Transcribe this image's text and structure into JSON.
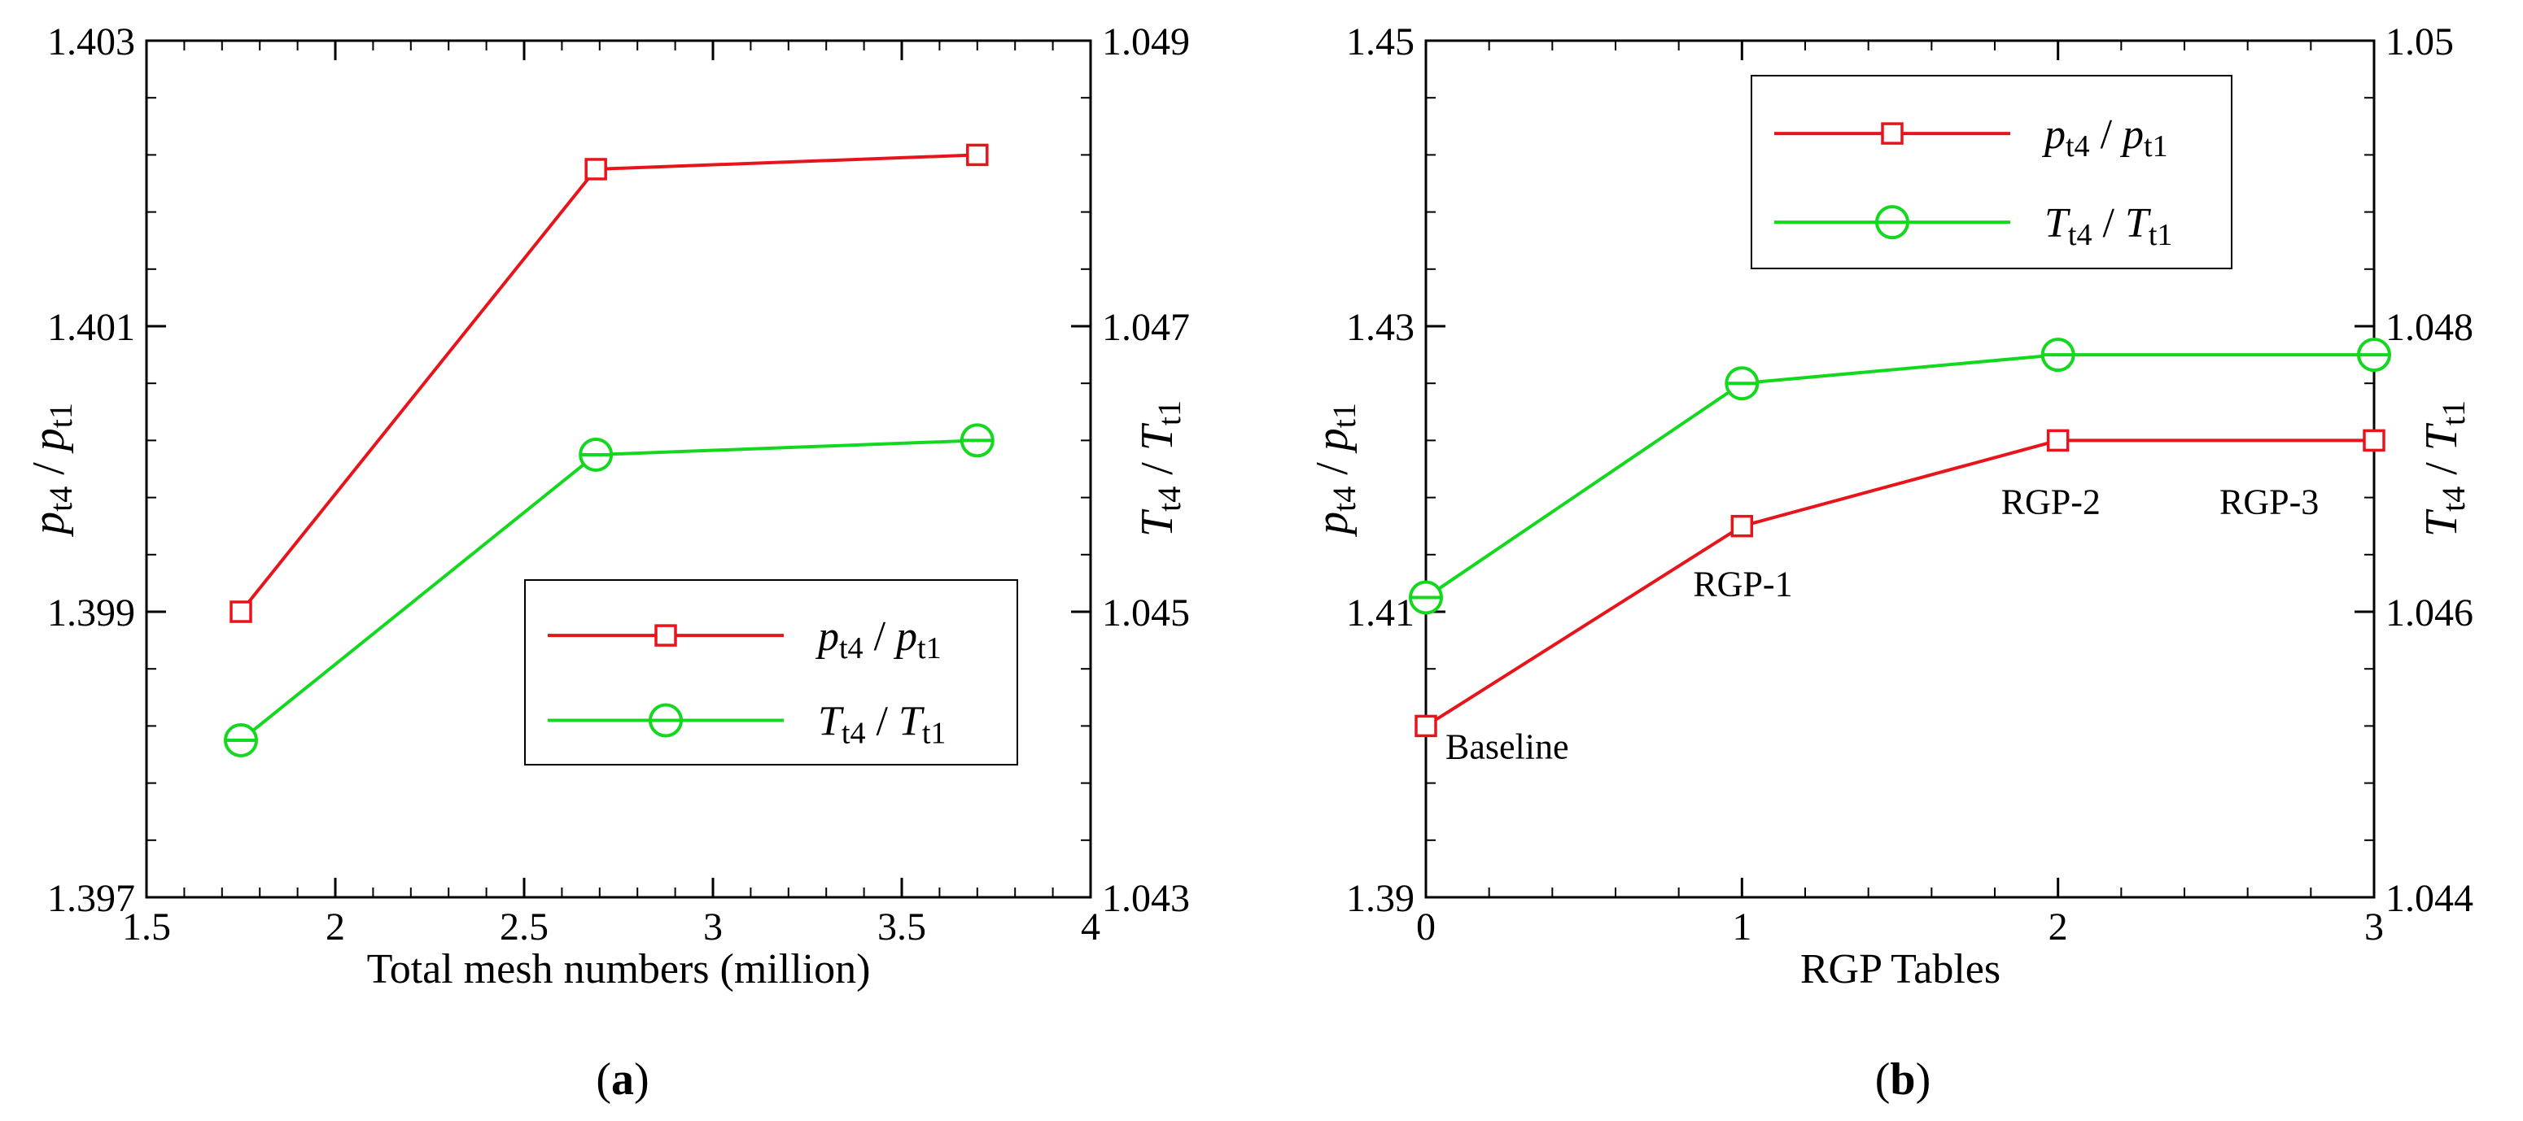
{
  "colors": {
    "pressure": "#e8141b",
    "temperature": "#12d81e",
    "axis": "#000000"
  },
  "chart_data": [
    {
      "panel": "a",
      "panel_label": "a",
      "type": "line",
      "xlabel": "Total mesh numbers (million)",
      "xlim": [
        1.5,
        4
      ],
      "x_ticks": [
        "1.5",
        "2",
        "2.5",
        "3",
        "3.5",
        "4"
      ],
      "ylim_left": [
        1.397,
        1.403
      ],
      "y_ticks_left": [
        "1.397",
        "1.399",
        "1.401",
        "1.403"
      ],
      "ylim_right": [
        1.043,
        1.049
      ],
      "y_ticks_right": [
        "1.043",
        "1.045",
        "1.047",
        "1.049"
      ],
      "ylabel_left": {
        "base": "p",
        "sub": "t4",
        "slash": " / ",
        "base2": "p",
        "sub2": "t1"
      },
      "ylabel_right": {
        "base": "T",
        "sub": "t4",
        "slash": " / ",
        "base2": "T",
        "sub2": "t1"
      },
      "legend_position": "lower-right",
      "series": [
        {
          "name": "pt4 / pt1",
          "axis": "left",
          "marker": "square",
          "color": "#e8141b",
          "x": [
            1.75,
            2.69,
            3.7
          ],
          "y": [
            1.399,
            1.4021,
            1.4022
          ]
        },
        {
          "name": "Tt4 / Tt1",
          "axis": "right",
          "marker": "circle",
          "color": "#12d81e",
          "x": [
            1.75,
            2.69,
            3.7
          ],
          "y": [
            1.0441,
            1.0461,
            1.0462
          ]
        }
      ],
      "annotations": []
    },
    {
      "panel": "b",
      "panel_label": "b",
      "type": "line",
      "xlabel": "RGP Tables",
      "xlim": [
        0,
        3
      ],
      "x_ticks": [
        "0",
        "1",
        "2",
        "3"
      ],
      "ylim_left": [
        1.39,
        1.45
      ],
      "y_ticks_left": [
        "1.39",
        "1.41",
        "1.43",
        "1.45"
      ],
      "ylim_right": [
        1.044,
        1.05
      ],
      "y_ticks_right": [
        "1.044",
        "1.046",
        "1.048",
        "1.05"
      ],
      "ylabel_left": {
        "base": "p",
        "sub": "t4",
        "slash": " / ",
        "base2": "p",
        "sub2": "t1"
      },
      "ylabel_right": {
        "base": "T",
        "sub": "t4",
        "slash": " / ",
        "base2": "T",
        "sub2": "t1"
      },
      "legend_position": "top-center",
      "series": [
        {
          "name": "pt4 / pt1",
          "axis": "left",
          "marker": "square",
          "color": "#e8141b",
          "x": [
            0,
            1,
            2,
            3
          ],
          "y": [
            1.402,
            1.416,
            1.422,
            1.422
          ]
        },
        {
          "name": "Tt4 / Tt1",
          "axis": "right",
          "marker": "circle",
          "color": "#12d81e",
          "x": [
            0,
            1,
            2,
            3
          ],
          "y": [
            1.0461,
            1.0476,
            1.0478,
            1.0478
          ]
        }
      ],
      "annotations": [
        {
          "text": "Baseline",
          "x": 0,
          "y": 1.402
        },
        {
          "text": "RGP-1",
          "x": 1,
          "y": 1.416
        },
        {
          "text": "RGP-2",
          "x": 2,
          "y": 1.422
        },
        {
          "text": "RGP-3",
          "x": 3,
          "y": 1.422
        }
      ]
    }
  ]
}
